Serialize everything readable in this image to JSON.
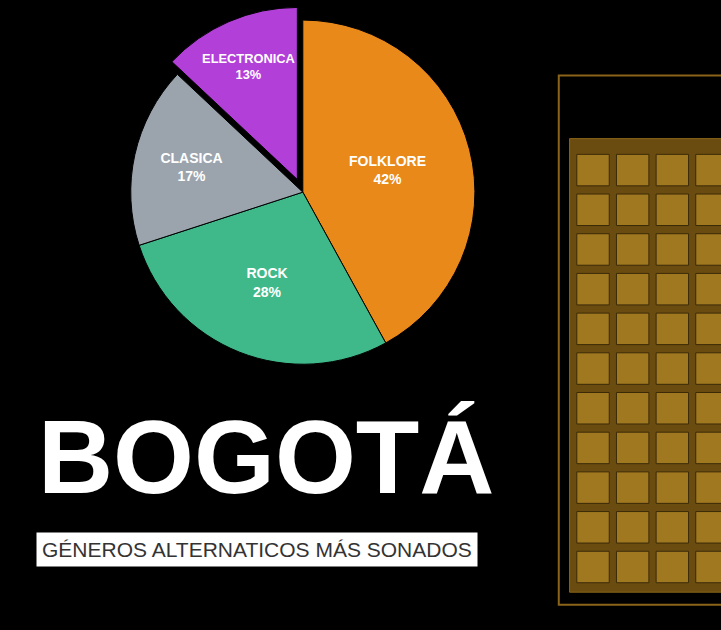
{
  "chart_data": {
    "type": "pie",
    "title": "BOGOTÁ",
    "subtitle": "GÉNEROS ALTERNATICOS MÁS SONADOS",
    "categories": [
      "FOLKLORE",
      "ROCK",
      "CLASICA",
      "ELECTRONICA"
    ],
    "values": [
      42,
      28,
      17,
      13
    ],
    "value_labels": [
      "42%",
      "28%",
      "17%",
      "13%"
    ],
    "colors": [
      "#e8891a",
      "#3fb98a",
      "#9ba4ad",
      "#b23fd8"
    ],
    "data_labels": true
  }
}
